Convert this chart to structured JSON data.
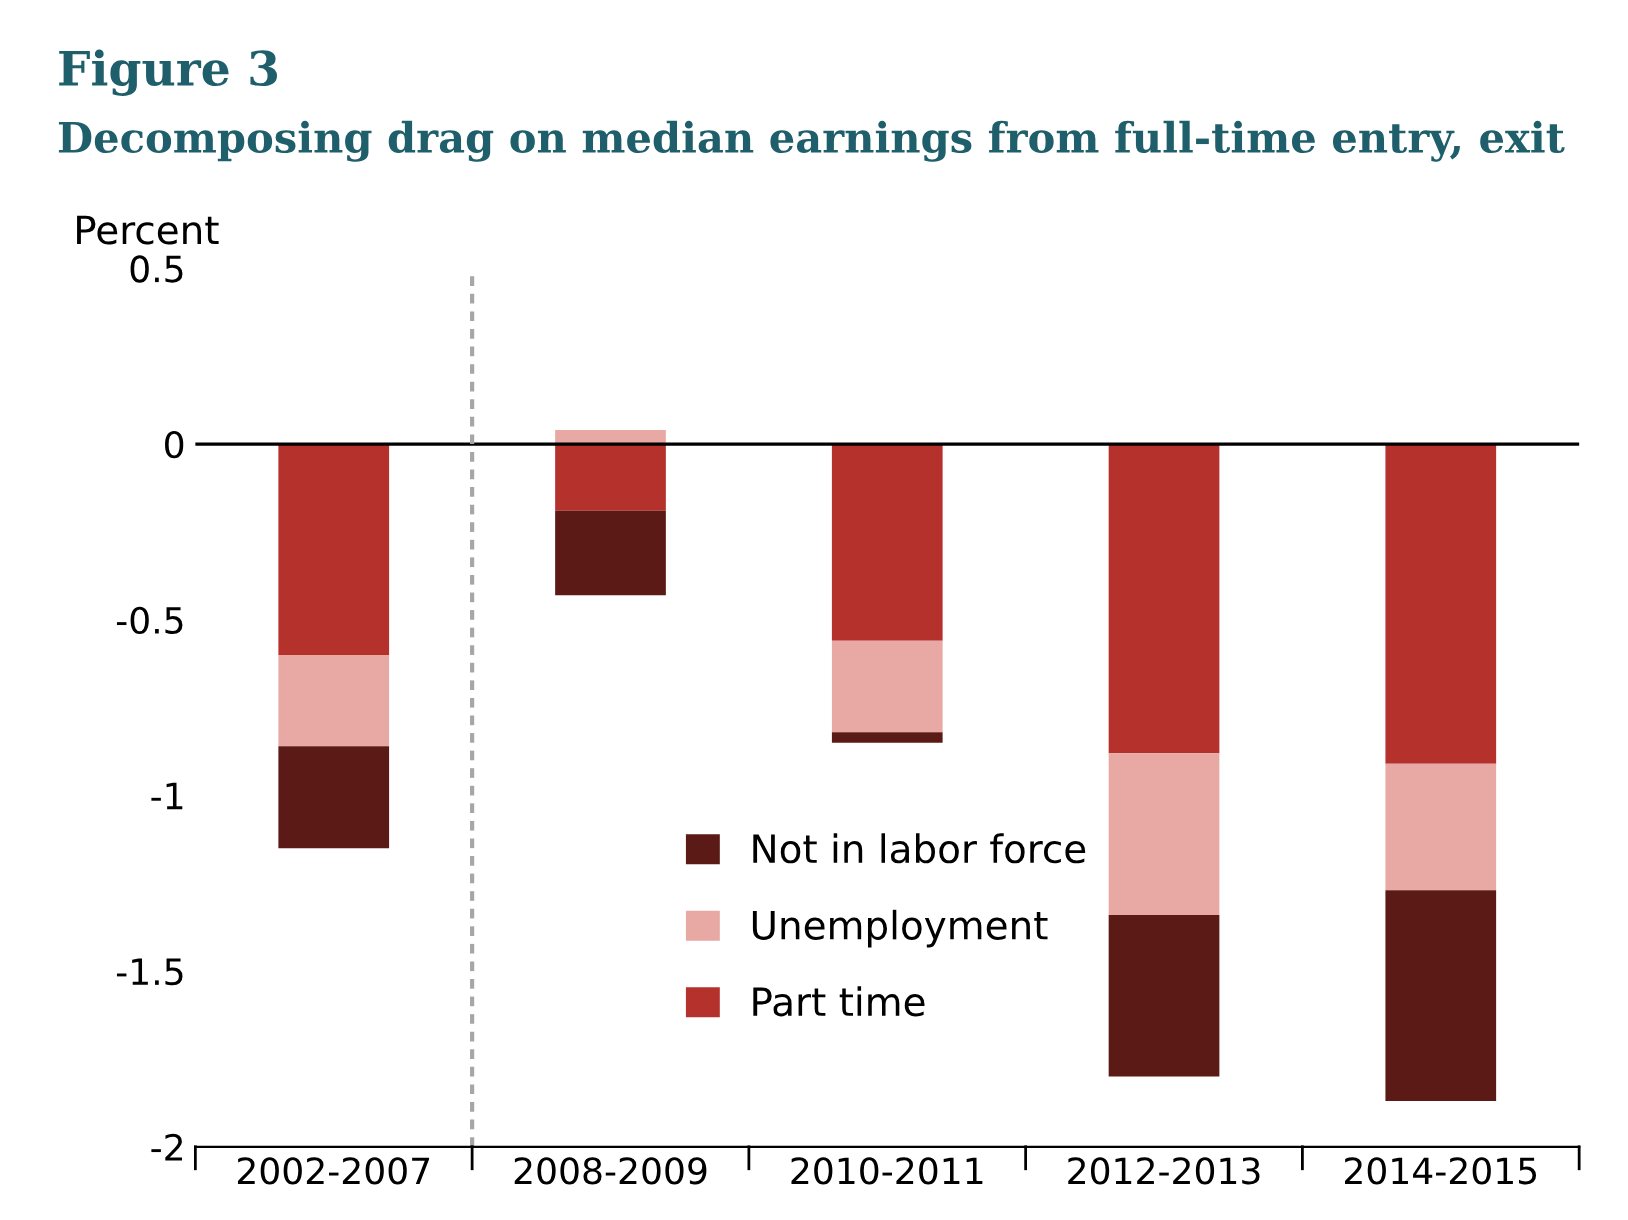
{
  "chart_data": {
    "type": "bar",
    "stacked": true,
    "title": "Figure 3",
    "subtitle": "Decomposing drag on median earnings from full-time entry, exit",
    "ylabel": "Percent",
    "categories": [
      "2002-2007",
      "2008-2009",
      "2010-2011",
      "2012-2013",
      "2014-2015"
    ],
    "series": [
      {
        "name": "Part time",
        "color": "#b5312c",
        "values": [
          -0.6,
          -0.19,
          -0.56,
          -0.88,
          -0.91
        ]
      },
      {
        "name": "Unemployment",
        "color": "#e8a8a3",
        "values": [
          -0.26,
          0.04,
          -0.26,
          -0.46,
          -0.36
        ]
      },
      {
        "name": "Not in labor force",
        "color": "#5c1a16",
        "values": [
          -0.29,
          -0.24,
          -0.03,
          -0.46,
          -0.6
        ]
      }
    ],
    "ylim": [
      -2,
      0.5
    ],
    "yticks": [
      -2,
      -1.5,
      -1,
      -0.5,
      0,
      0.5
    ],
    "ref_lines": [
      {
        "axis": "y",
        "value": 0,
        "color": "#000000",
        "line_style": "solid"
      }
    ],
    "legend": "bottom",
    "grid": false
  }
}
